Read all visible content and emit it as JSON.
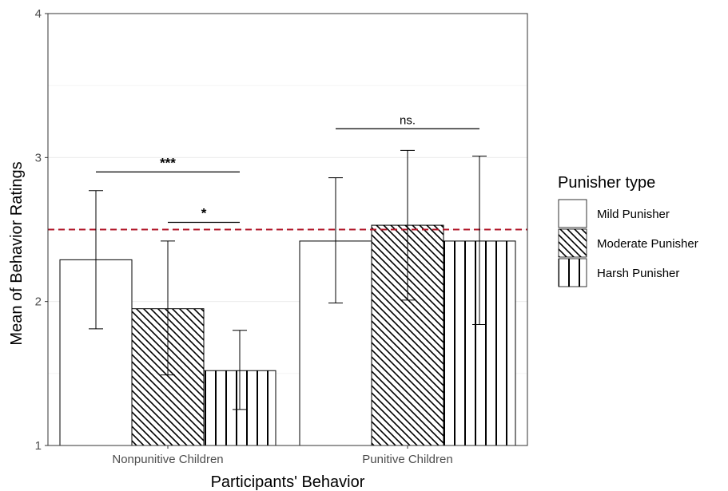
{
  "chart_data": {
    "type": "bar",
    "xlabel": "Participants' Behavior",
    "ylabel": "Mean of Behavior Ratings",
    "ylim": [
      1,
      4
    ],
    "y_ticks": [
      1,
      2,
      3,
      4
    ],
    "categories": [
      "Nonpunitive Children",
      "Punitive Children"
    ],
    "series": [
      {
        "name": "Mild Punisher",
        "pattern": "none",
        "values": [
          2.29,
          2.42
        ],
        "err_low": [
          1.81,
          1.99
        ],
        "err_high": [
          2.77,
          2.86
        ]
      },
      {
        "name": "Moderate Punisher",
        "pattern": "diagonal",
        "values": [
          1.95,
          2.53
        ],
        "err_low": [
          1.49,
          2.01
        ],
        "err_high": [
          2.42,
          3.05
        ]
      },
      {
        "name": "Harsh Punisher",
        "pattern": "vertical",
        "values": [
          1.52,
          2.42
        ],
        "err_low": [
          1.25,
          1.84
        ],
        "err_high": [
          1.8,
          3.01
        ]
      }
    ],
    "reference_line": {
      "y": 2.5,
      "color": "#b2182b",
      "style": "dashed"
    },
    "significance": [
      {
        "category": 0,
        "from_series": 0,
        "to_series": 2,
        "y": 2.9,
        "label": "***"
      },
      {
        "category": 0,
        "from_series": 1,
        "to_series": 2,
        "y": 2.55,
        "label": "*"
      },
      {
        "category": 1,
        "from_series": 0,
        "to_series": 2,
        "y": 3.2,
        "label": "ns."
      }
    ],
    "legend": {
      "title": "Punisher type",
      "position": "right"
    },
    "grid": true
  }
}
